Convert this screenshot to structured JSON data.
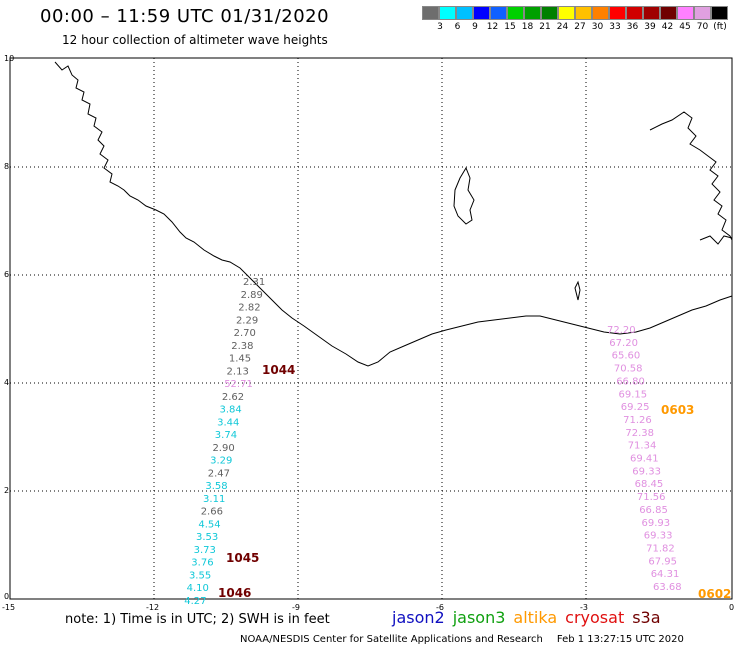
{
  "title": "00:00 – 11:59 UTC 01/31/2020",
  "subtitle": "12 hour collection of altimeter wave heights",
  "colorbar": {
    "colors": [
      "#6e6e6e",
      "#00ffff",
      "#00c0ff",
      "#0000ff",
      "#1060ff",
      "#00d000",
      "#00a000",
      "#008000",
      "#ffff00",
      "#ffc000",
      "#ff8000",
      "#ff0000",
      "#d00000",
      "#a00000",
      "#700000",
      "#ff80ff",
      "#e0a0e0",
      "#000000"
    ],
    "labels": [
      "3",
      "6",
      "9",
      "12",
      "15",
      "18",
      "21",
      "24",
      "27",
      "30",
      "33",
      "36",
      "39",
      "42",
      "45",
      "70",
      "(ft)"
    ],
    "unit": "(ft)"
  },
  "axes": {
    "x_ticks": [
      "-15",
      "-12",
      "-9",
      "-6",
      "-3",
      "0"
    ],
    "y_ticks": [
      "0",
      "2",
      "4",
      "6",
      "8",
      "10"
    ]
  },
  "satellite_colors": {
    "jason2": "#1010c0",
    "jason3": "#10a010",
    "altika": "#ff9900",
    "cryosat": "#e01010",
    "s3a": "#700000",
    "gray": "#606060",
    "cyan": "#10c8d8",
    "pink": "#e090e0",
    "time": "#700000",
    "orange": "#ff9900"
  },
  "left_track": [
    {
      "text": "2.31",
      "color": "gray"
    },
    {
      "text": "2.89",
      "color": "gray"
    },
    {
      "text": "2.82",
      "color": "gray"
    },
    {
      "text": "2.29",
      "color": "gray"
    },
    {
      "text": "2.70",
      "color": "gray"
    },
    {
      "text": "2.38",
      "color": "gray"
    },
    {
      "text": "1.45",
      "color": "gray"
    },
    {
      "text": "2.13",
      "color": "gray"
    },
    {
      "text": "52.71",
      "color": "pink"
    },
    {
      "text": "2.62",
      "color": "gray"
    },
    {
      "text": "3.84",
      "color": "cyan"
    },
    {
      "text": "3.44",
      "color": "cyan"
    },
    {
      "text": "3.74",
      "color": "cyan"
    },
    {
      "text": "2.90",
      "color": "gray"
    },
    {
      "text": "3.29",
      "color": "cyan"
    },
    {
      "text": "2.47",
      "color": "gray"
    },
    {
      "text": "3.58",
      "color": "cyan"
    },
    {
      "text": "3.11",
      "color": "cyan"
    },
    {
      "text": "2.66",
      "color": "gray"
    },
    {
      "text": "4.54",
      "color": "cyan"
    },
    {
      "text": "3.53",
      "color": "cyan"
    },
    {
      "text": "3.73",
      "color": "cyan"
    },
    {
      "text": "3.76",
      "color": "cyan"
    },
    {
      "text": "3.55",
      "color": "cyan"
    },
    {
      "text": "4.10",
      "color": "cyan"
    },
    {
      "text": "4.27",
      "color": "cyan"
    }
  ],
  "right_track": [
    {
      "text": "72.20",
      "color": "pink"
    },
    {
      "text": "67.20",
      "color": "pink"
    },
    {
      "text": "65.60",
      "color": "pink"
    },
    {
      "text": "70.58",
      "color": "pink"
    },
    {
      "text": "66.80",
      "color": "pink"
    },
    {
      "text": "69.15",
      "color": "pink"
    },
    {
      "text": "69.25",
      "color": "pink"
    },
    {
      "text": "71.26",
      "color": "pink"
    },
    {
      "text": "72.38",
      "color": "pink"
    },
    {
      "text": "71.34",
      "color": "pink"
    },
    {
      "text": "69.41",
      "color": "pink"
    },
    {
      "text": "69.33",
      "color": "pink"
    },
    {
      "text": "68.45",
      "color": "pink"
    },
    {
      "text": "71.56",
      "color": "pink"
    },
    {
      "text": "66.85",
      "color": "pink"
    },
    {
      "text": "69.93",
      "color": "pink"
    },
    {
      "text": "69.33",
      "color": "pink"
    },
    {
      "text": "71.82",
      "color": "pink"
    },
    {
      "text": "67.95",
      "color": "pink"
    },
    {
      "text": "64.31",
      "color": "pink"
    },
    {
      "text": "63.68",
      "color": "pink"
    }
  ],
  "time_labels": [
    {
      "text": "1044",
      "color": "time"
    },
    {
      "text": "1045",
      "color": "time"
    },
    {
      "text": "1046",
      "color": "time"
    },
    {
      "text": "0603",
      "color": "orange"
    },
    {
      "text": "0602",
      "color": "orange"
    }
  ],
  "footer": {
    "note": "note:  1) Time is in UTC;  2) SWH is in feet",
    "satellites": [
      {
        "name": "jason2",
        "color": "#1010c0"
      },
      {
        "name": "jason3",
        "color": "#10a010"
      },
      {
        "name": "altika",
        "color": "#ff9900"
      },
      {
        "name": "cryosat",
        "color": "#e01010"
      },
      {
        "name": "s3a",
        "color": "#700000"
      }
    ],
    "credit": "NOAA/NESDIS Center for Satellite Applications and Research",
    "credit_date": "Feb  1 13:27:15 UTC 2020"
  }
}
